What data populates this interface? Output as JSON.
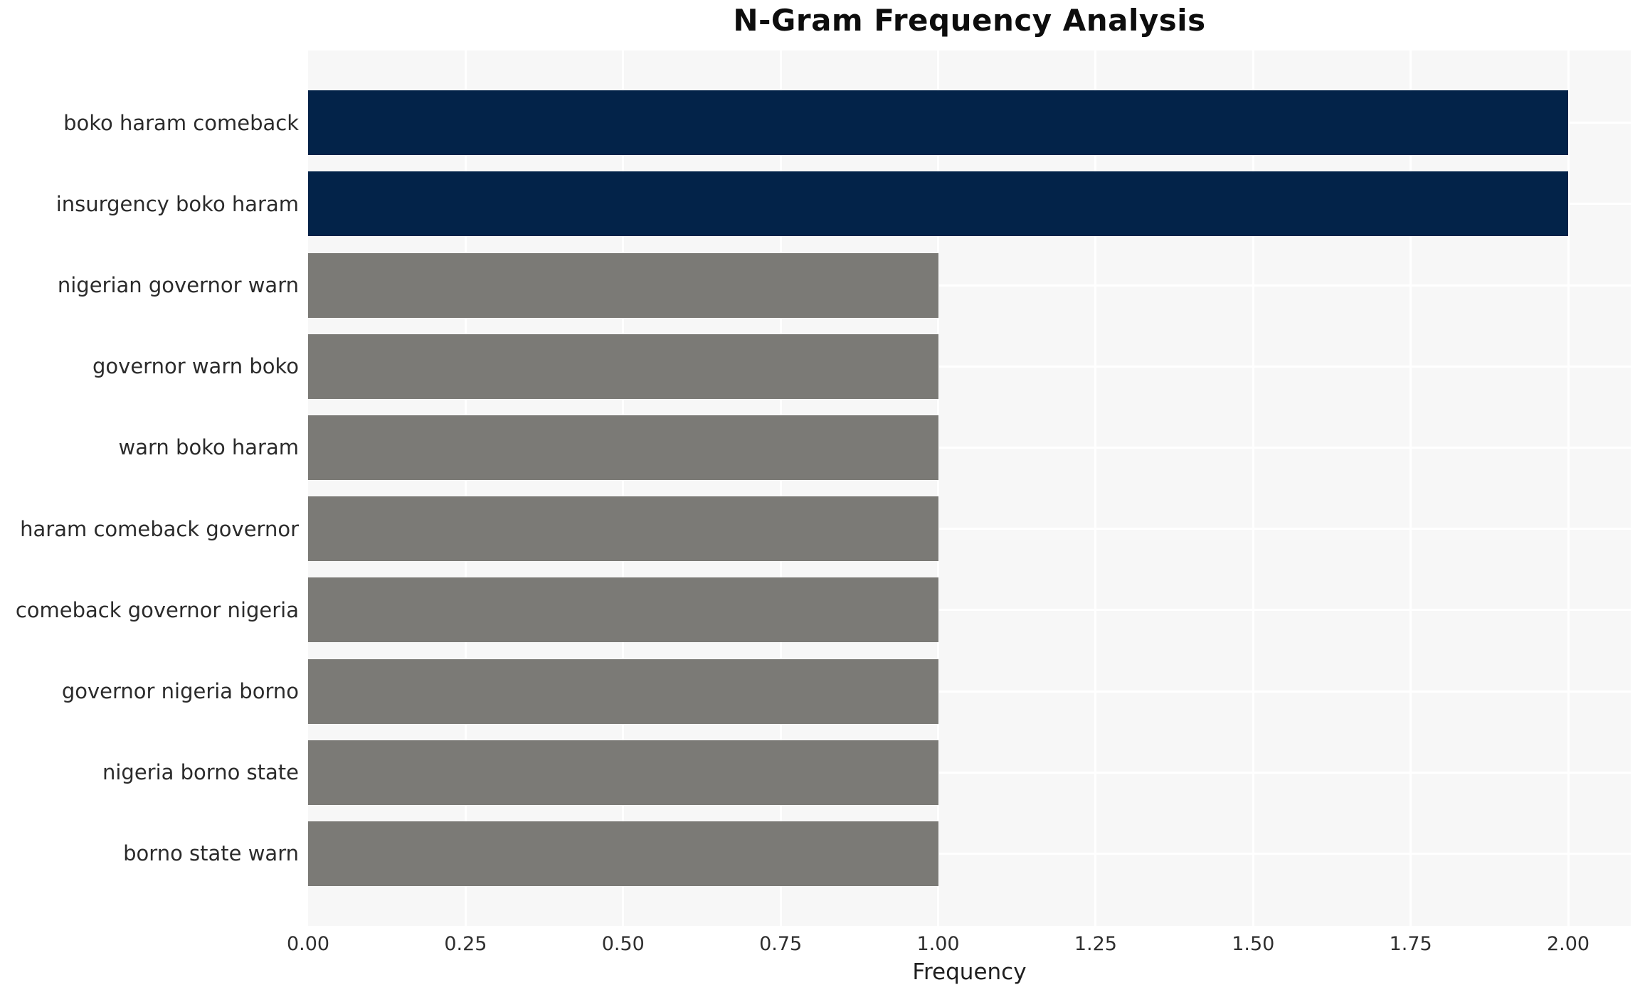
{
  "chart_data": {
    "type": "bar",
    "orientation": "horizontal",
    "title": "N-Gram Frequency Analysis",
    "xlabel": "Frequency",
    "ylabel": "",
    "categories": [
      "boko haram comeback",
      "insurgency boko haram",
      "nigerian governor warn",
      "governor warn boko",
      "warn boko haram",
      "haram comeback governor",
      "comeback governor nigeria",
      "governor nigeria borno",
      "nigeria borno state",
      "borno state warn"
    ],
    "values": [
      2,
      2,
      1,
      1,
      1,
      1,
      1,
      1,
      1,
      1
    ],
    "xlim": [
      0,
      2.1
    ],
    "xticks": [
      0,
      0.25,
      0.5,
      0.75,
      1.0,
      1.25,
      1.5,
      1.75,
      2.0
    ],
    "xtick_labels": [
      "0.00",
      "0.25",
      "0.50",
      "0.75",
      "1.00",
      "1.25",
      "1.50",
      "1.75",
      "2.00"
    ],
    "legend": "none",
    "grid": "white vertical gridlines at x ticks and white horizontal gridlines at category centers on light gray panel",
    "bar_color_rule": "bars with the maximum value (2) are dark navy; all other bars are gray",
    "colors": {
      "bar_highlight": "#032349",
      "bar_default": "#7b7a76",
      "panel_background": "#f7f7f7",
      "gridline": "#ffffff",
      "title_text": "#0d0d0d",
      "tick_text": "#2e2e2e"
    }
  }
}
